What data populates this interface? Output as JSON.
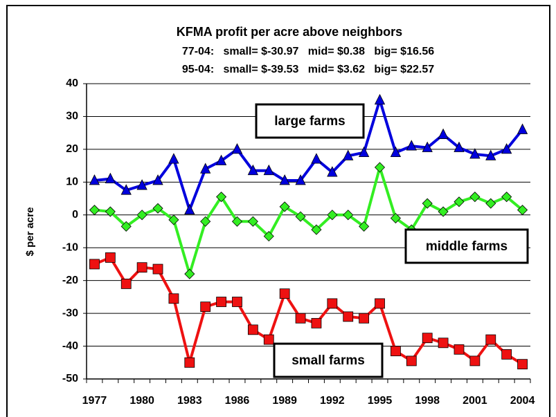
{
  "chart_data": {
    "type": "line",
    "title": "KFMA profit per acre above neighbors",
    "subtitles": [
      "77-04:   small= $-30.97   mid= $0.38   big= $16.56",
      "95-04:   small= $-39.53   mid= $3.62   big= $22.57"
    ],
    "y_label": "$ per acre",
    "categories": [
      "1977",
      null,
      null,
      "1980",
      null,
      null,
      "1983",
      null,
      null,
      "1986",
      null,
      null,
      "1989",
      null,
      null,
      "1992",
      null,
      null,
      "1995",
      null,
      null,
      "1998",
      null,
      null,
      "2001",
      null,
      null,
      "2004"
    ],
    "ylim": [
      -50,
      40
    ],
    "yticks": [
      -50,
      -40,
      -30,
      -20,
      -10,
      0,
      10,
      20,
      30,
      40
    ],
    "grid": true,
    "series": [
      {
        "name": "large farms",
        "color": "#0000dd",
        "marker": "triangle",
        "values": [
          10.5,
          11,
          7.5,
          9,
          10.5,
          17,
          1.5,
          14,
          16.5,
          20,
          13.5,
          13.5,
          10.5,
          10.5,
          17,
          13,
          18,
          19,
          35,
          19,
          21,
          20.5,
          24.5,
          20.5,
          18.5,
          18,
          20,
          26
        ]
      },
      {
        "name": "middle farms",
        "color": "#33ee22",
        "marker": "diamond",
        "values": [
          1.5,
          1,
          -3.5,
          0,
          2,
          -1.5,
          -18,
          -2,
          5.5,
          -2,
          -2,
          -6.5,
          2.5,
          -0.5,
          -4.5,
          0,
          0,
          -3.5,
          14.5,
          -1,
          -4.5,
          3.5,
          1,
          4,
          5.5,
          3.5,
          5.5,
          1.5
        ]
      },
      {
        "name": "small farms",
        "color": "#ee1111",
        "marker": "square",
        "values": [
          -15,
          -13,
          -21,
          -16,
          -16.5,
          -25.5,
          -45,
          -28,
          -26.5,
          -26.5,
          -35,
          -38,
          -24,
          -31.5,
          -33,
          -27,
          -31,
          -31.5,
          -27,
          -41.5,
          -44.5,
          -37.5,
          -39,
          -41,
          -44.5,
          -38,
          -42.5,
          -45.5
        ]
      }
    ]
  }
}
